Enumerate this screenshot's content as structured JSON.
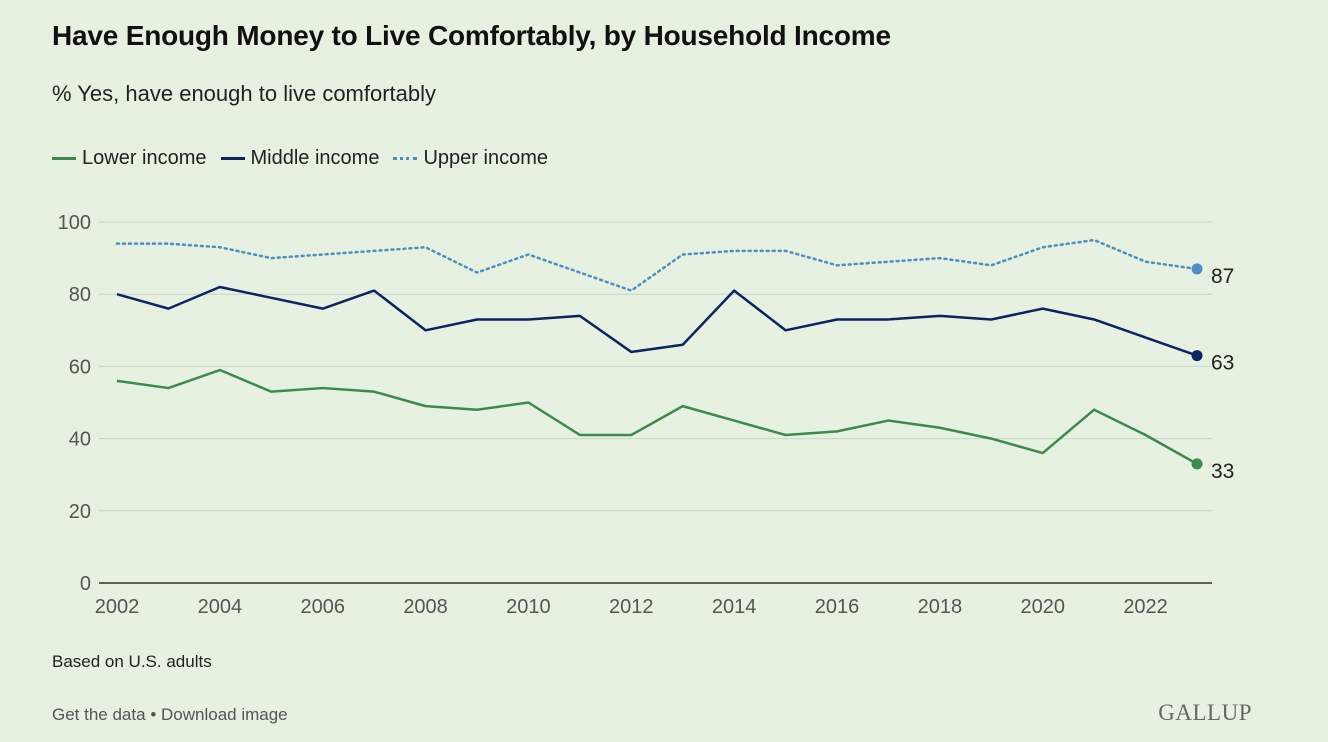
{
  "header": {
    "title": "Have Enough Money to Live Comfortably, by Household Income",
    "subtitle": "% Yes, have enough to live comfortably"
  },
  "legend": {
    "lower": "Lower income",
    "middle": "Middle income",
    "upper": "Upper income"
  },
  "footer": {
    "note": "Based on U.S. adults",
    "get_data": "Get the data",
    "separator": "•",
    "download": "Download image",
    "brand": "GALLUP"
  },
  "colors": {
    "lower": "#3d8a4f",
    "middle": "#0d2463",
    "upper": "#4d8fc4",
    "background": "#e6f1e1"
  },
  "chart_data": {
    "type": "line",
    "title": "Have Enough Money to Live Comfortably, by Household Income",
    "ylabel": "% Yes, have enough to live comfortably",
    "xlabel": "",
    "x": [
      2002,
      2003,
      2004,
      2005,
      2006,
      2007,
      2008,
      2009,
      2010,
      2011,
      2012,
      2013,
      2014,
      2015,
      2016,
      2017,
      2018,
      2019,
      2020,
      2021,
      2022,
      2023
    ],
    "xlim": [
      2002,
      2023
    ],
    "ylim": [
      0,
      100
    ],
    "y_ticks": [
      0,
      20,
      40,
      60,
      80,
      100
    ],
    "x_ticks": [
      2002,
      2004,
      2006,
      2008,
      2010,
      2012,
      2014,
      2016,
      2018,
      2020,
      2022
    ],
    "grid": true,
    "series": [
      {
        "key": "upper",
        "name": "Upper income",
        "style": "dotted",
        "values": [
          94,
          94,
          93,
          90,
          91,
          92,
          93,
          86,
          91,
          86,
          81,
          91,
          92,
          92,
          88,
          89,
          90,
          88,
          93,
          95,
          89,
          87
        ],
        "end_label": "87"
      },
      {
        "key": "middle",
        "name": "Middle income",
        "style": "solid",
        "values": [
          80,
          76,
          82,
          79,
          76,
          81,
          70,
          73,
          73,
          74,
          64,
          66,
          81,
          70,
          73,
          73,
          74,
          73,
          76,
          73,
          68,
          63
        ],
        "end_label": "63"
      },
      {
        "key": "lower",
        "name": "Lower income",
        "style": "solid",
        "values": [
          56,
          54,
          59,
          53,
          54,
          53,
          49,
          48,
          50,
          41,
          41,
          49,
          45,
          41,
          42,
          45,
          43,
          40,
          36,
          48,
          41,
          33
        ],
        "end_label": "33"
      }
    ]
  }
}
